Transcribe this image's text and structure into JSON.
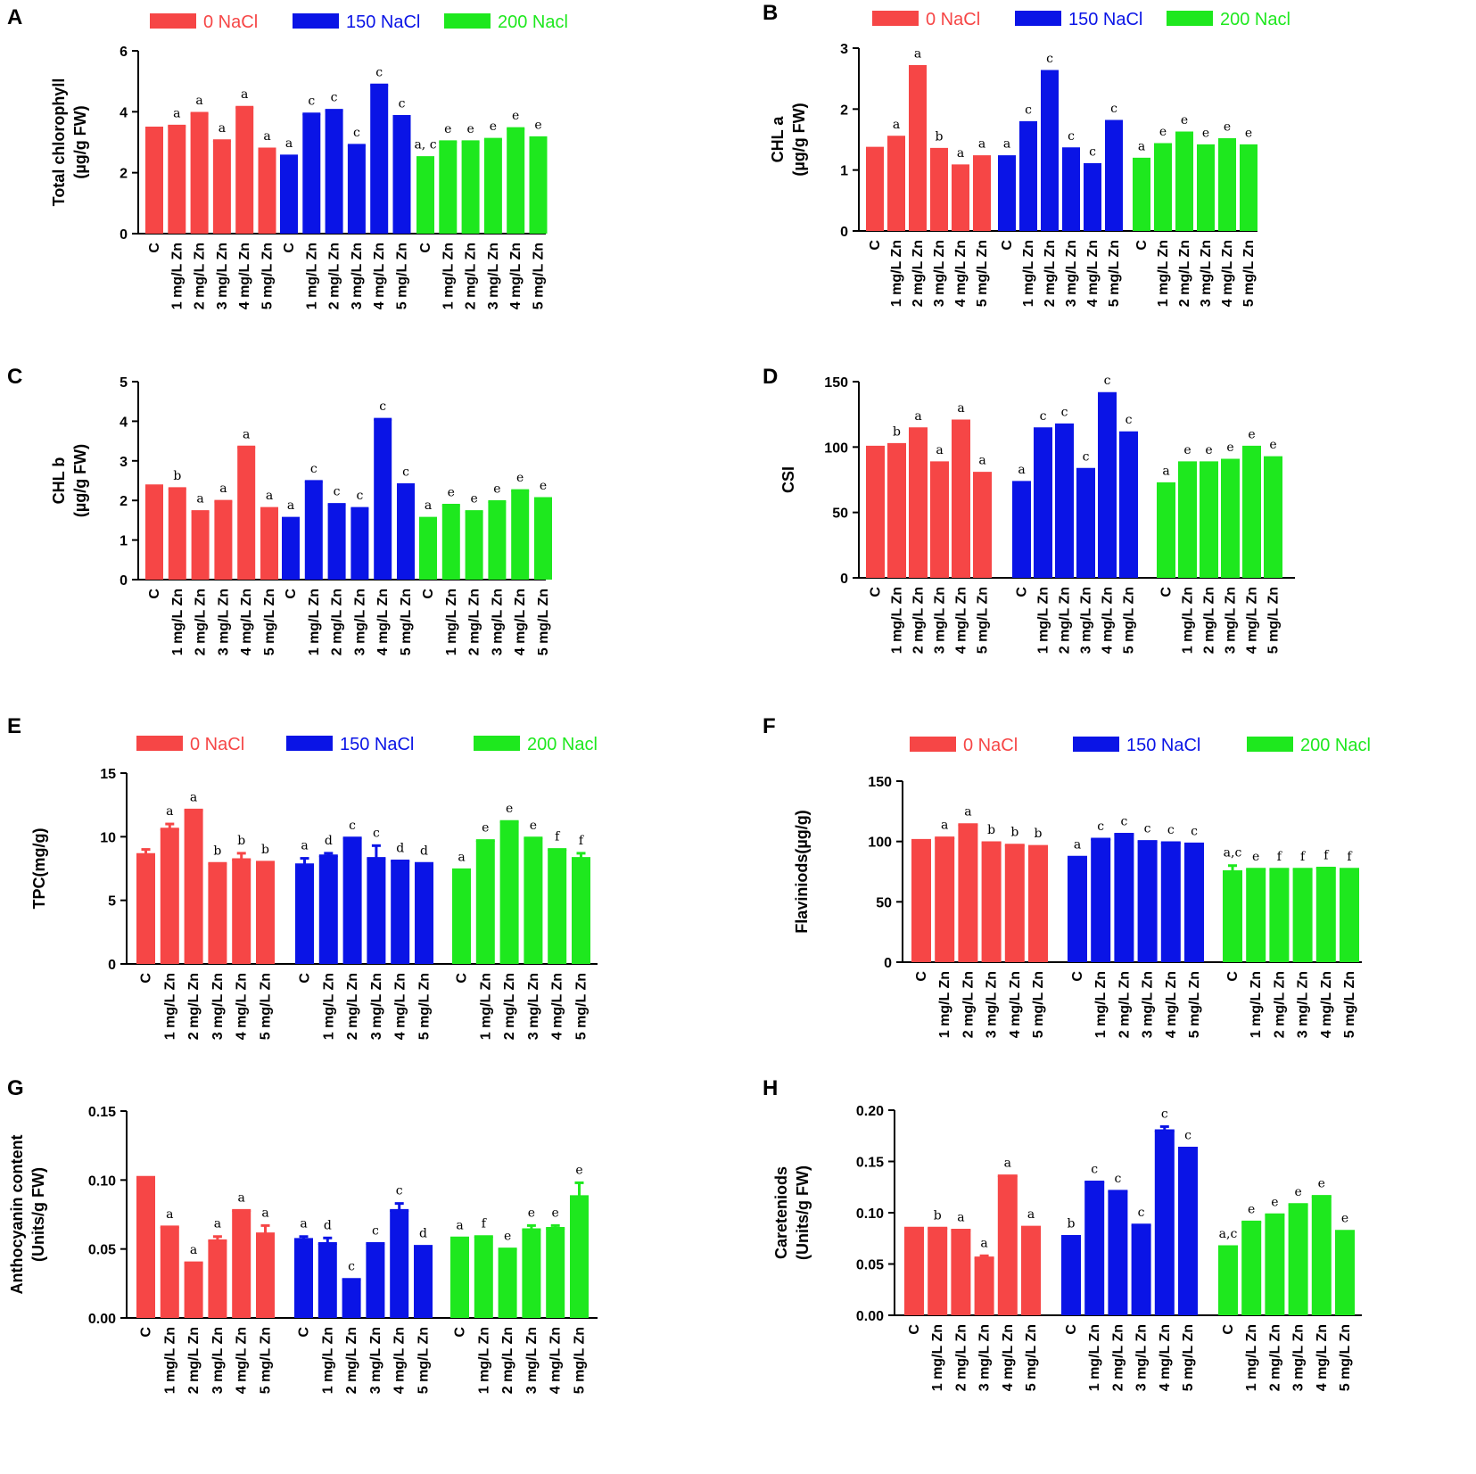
{
  "figure": {
    "series_names": [
      "0 NaCl",
      "150 NaCl",
      "200 Nacl"
    ],
    "colors": {
      "0 NaCl": "#f64646",
      "150 NaCl": "#0a14e6",
      "200 Nacl": "#1ee81e",
      "axis": "#000000",
      "background": "#ffffff"
    }
  },
  "chart_data": [
    {
      "panel": "A",
      "type": "bar",
      "ylabel": "Total chlorophyll\n(µg/g FW)",
      "ylim": [
        0,
        6
      ],
      "yticks": [
        "0",
        "2",
        "4",
        "6"
      ],
      "legend": true,
      "categories": [
        "C",
        "1 mg/L Zn",
        "2 mg/L Zn",
        "3 mg/L Zn",
        "4 mg/L Zn",
        "5 mg/L Zn"
      ],
      "series": [
        {
          "name": "0 NaCl",
          "values": [
            3.47,
            3.53,
            3.95,
            3.05,
            4.15,
            2.78
          ],
          "errors": [
            0,
            0,
            0,
            0,
            0,
            0
          ],
          "labels": [
            "",
            "a",
            "a",
            "a",
            "a",
            "a"
          ]
        },
        {
          "name": "150 NaCl",
          "values": [
            2.55,
            3.93,
            4.05,
            2.9,
            4.88,
            3.85
          ],
          "errors": [
            0,
            0,
            0,
            0,
            0,
            0
          ],
          "labels": [
            "a",
            "c",
            "c",
            "c",
            "c",
            "c"
          ]
        },
        {
          "name": "200 Nacl",
          "values": [
            2.5,
            3.02,
            3.02,
            3.1,
            3.45,
            3.15
          ],
          "errors": [
            0,
            0,
            0,
            0,
            0,
            0
          ],
          "labels": [
            "a, c",
            "e",
            "e",
            "e",
            "e",
            "e"
          ]
        }
      ]
    },
    {
      "panel": "B",
      "type": "bar",
      "ylabel": "CHL a\n(µg/g FW)",
      "ylim": [
        0,
        3
      ],
      "yticks": [
        "0",
        "1",
        "2",
        "3"
      ],
      "legend": true,
      "categories": [
        "C",
        "1 mg/L Zn",
        "2 mg/L Zn",
        "3 mg/L Zn",
        "4 mg/L Zn",
        "5 mg/L Zn"
      ],
      "series": [
        {
          "name": "0 NaCl",
          "values": [
            1.36,
            1.54,
            2.7,
            1.34,
            1.07,
            1.22
          ],
          "errors": [
            0,
            0,
            0,
            0,
            0,
            0
          ],
          "labels": [
            "",
            "a",
            "a",
            "b",
            "a",
            "a"
          ]
        },
        {
          "name": "150 NaCl",
          "values": [
            1.22,
            1.78,
            2.62,
            1.35,
            1.09,
            1.8
          ],
          "errors": [
            0,
            0,
            0,
            0,
            0,
            0
          ],
          "labels": [
            "a",
            "c",
            "c",
            "c",
            "c",
            "c"
          ]
        },
        {
          "name": "200 Nacl",
          "values": [
            1.18,
            1.42,
            1.61,
            1.4,
            1.5,
            1.4
          ],
          "errors": [
            0,
            0,
            0,
            0,
            0,
            0
          ],
          "labels": [
            "a",
            "e",
            "e",
            "e",
            "e",
            "e"
          ]
        }
      ]
    },
    {
      "panel": "C",
      "type": "bar",
      "ylabel": "CHL b\n(µg/g FW)",
      "ylim": [
        0,
        5
      ],
      "yticks": [
        "0",
        "1",
        "2",
        "3",
        "4",
        "5"
      ],
      "legend": false,
      "categories": [
        "C",
        "1 mg/L Zn",
        "2 mg/L Zn",
        "3 mg/L Zn",
        "4 mg/L Zn",
        "5 mg/L Zn"
      ],
      "series": [
        {
          "name": "0 NaCl",
          "values": [
            2.37,
            2.3,
            1.72,
            1.98,
            3.35,
            1.8
          ],
          "errors": [
            0,
            0,
            0,
            0,
            0,
            0
          ],
          "labels": [
            "",
            "b",
            "a",
            "a",
            "a",
            "a"
          ]
        },
        {
          "name": "150 NaCl",
          "values": [
            1.55,
            2.48,
            1.9,
            1.8,
            4.05,
            2.4
          ],
          "errors": [
            0,
            0,
            0,
            0,
            0,
            0
          ],
          "labels": [
            "a",
            "c",
            "c",
            "c",
            "c",
            "c"
          ]
        },
        {
          "name": "200 Nacl",
          "values": [
            1.55,
            1.88,
            1.72,
            1.97,
            2.25,
            2.05
          ],
          "errors": [
            0,
            0,
            0,
            0,
            0,
            0
          ],
          "labels": [
            "a",
            "e",
            "e",
            "e",
            "e",
            "e"
          ]
        }
      ]
    },
    {
      "panel": "D",
      "type": "bar",
      "ylabel": "CSI",
      "ylim": [
        0,
        150
      ],
      "yticks": [
        "0",
        "50",
        "100",
        "150"
      ],
      "legend": false,
      "categories": [
        "C",
        "1 mg/L Zn",
        "2 mg/L Zn",
        "3 mg/L Zn",
        "4 mg/L Zn",
        "5 mg/L Zn"
      ],
      "series": [
        {
          "name": "0 NaCl",
          "values": [
            100,
            102,
            114,
            88,
            120,
            80
          ],
          "errors": [
            0,
            0,
            0,
            0,
            0,
            0
          ],
          "labels": [
            "",
            "b",
            "a",
            "a",
            "a",
            "a"
          ]
        },
        {
          "name": "150 NaCl",
          "values": [
            73,
            114,
            117,
            83,
            141,
            111
          ],
          "errors": [
            0,
            0,
            0,
            0,
            0,
            0
          ],
          "labels": [
            "a",
            "c",
            "c",
            "c",
            "c",
            "c"
          ]
        },
        {
          "name": "200 Nacl",
          "values": [
            72,
            88,
            88,
            90,
            100,
            92
          ],
          "errors": [
            0,
            0,
            0,
            0,
            0,
            0
          ],
          "labels": [
            "a",
            "e",
            "e",
            "e",
            "e",
            "e"
          ]
        }
      ]
    },
    {
      "panel": "E",
      "type": "bar",
      "ylabel": "TPC(mg/g)",
      "ylim": [
        0,
        15
      ],
      "yticks": [
        "0",
        "5",
        "10",
        "15"
      ],
      "legend": true,
      "categories": [
        "C",
        "1 mg/L Zn",
        "2 mg/L Zn",
        "3 mg/L Zn",
        "4 mg/L Zn",
        "5 mg/L Zn"
      ],
      "series": [
        {
          "name": "0 NaCl",
          "values": [
            8.6,
            10.6,
            12.1,
            7.9,
            8.2,
            8.0
          ],
          "errors": [
            0.4,
            0.4,
            0,
            0,
            0.5,
            0
          ],
          "labels": [
            "",
            "a",
            "a",
            "b",
            "b",
            "b"
          ]
        },
        {
          "name": "150 NaCl",
          "values": [
            7.8,
            8.5,
            9.9,
            8.3,
            8.1,
            7.9
          ],
          "errors": [
            0.5,
            0.2,
            0,
            1.0,
            0,
            0
          ],
          "labels": [
            "a",
            "d",
            "c",
            "c",
            "d",
            "d"
          ]
        },
        {
          "name": "200 Nacl",
          "values": [
            7.4,
            9.7,
            11.2,
            9.9,
            9.0,
            8.3
          ],
          "errors": [
            0,
            0,
            0,
            0,
            0,
            0.4
          ],
          "labels": [
            "a",
            "e",
            "e",
            "e",
            "f",
            "f"
          ]
        }
      ]
    },
    {
      "panel": "F",
      "type": "bar",
      "ylabel": "Flaviniods(µg/g)",
      "ylim": [
        0,
        150
      ],
      "yticks": [
        "0",
        "50",
        "100",
        "150"
      ],
      "legend": true,
      "categories": [
        "C",
        "1 mg/L Zn",
        "2 mg/L Zn",
        "3 mg/L Zn",
        "4 mg/L Zn",
        "5 mg/L Zn"
      ],
      "series": [
        {
          "name": "0 NaCl",
          "values": [
            101,
            103,
            114,
            99,
            97,
            96
          ],
          "errors": [
            0,
            0,
            0,
            0,
            0,
            0
          ],
          "labels": [
            "",
            "a",
            "a",
            "b",
            "b",
            "b"
          ]
        },
        {
          "name": "150 NaCl",
          "values": [
            87,
            102,
            106,
            100,
            99,
            98
          ],
          "errors": [
            0,
            0,
            0,
            0,
            0,
            0
          ],
          "labels": [
            "a",
            "c",
            "c",
            "c",
            "c",
            "c"
          ]
        },
        {
          "name": "200 Nacl",
          "values": [
            75,
            77,
            77,
            77,
            78,
            77
          ],
          "errors": [
            5,
            0,
            0,
            0,
            0,
            0
          ],
          "labels": [
            "a,c",
            "e",
            "f",
            "f",
            "f",
            "f"
          ]
        }
      ]
    },
    {
      "panel": "G",
      "type": "bar",
      "ylabel": "Anthocyanin content\n(Units/g FW)",
      "ylim": [
        0,
        0.15
      ],
      "yticks": [
        "0.00",
        "0.05",
        "0.10",
        "0.15"
      ],
      "legend": false,
      "categories": [
        "C",
        "1 mg/L Zn",
        "2 mg/L Zn",
        "3 mg/L Zn",
        "4 mg/L Zn",
        "5 mg/L Zn"
      ],
      "series": [
        {
          "name": "0 NaCl",
          "values": [
            0.102,
            0.066,
            0.04,
            0.056,
            0.078,
            0.061
          ],
          "errors": [
            0,
            0,
            0,
            0.003,
            0,
            0.006
          ],
          "labels": [
            "",
            "a",
            "a",
            "a",
            "a",
            "a"
          ]
        },
        {
          "name": "150 NaCl",
          "values": [
            0.057,
            0.054,
            0.028,
            0.054,
            0.078,
            0.052
          ],
          "errors": [
            0.002,
            0.004,
            0,
            0,
            0.005,
            0
          ],
          "labels": [
            "a",
            "d",
            "c",
            "c",
            "c",
            "d"
          ]
        },
        {
          "name": "200 Nacl",
          "values": [
            0.058,
            0.059,
            0.05,
            0.064,
            0.065,
            0.088
          ],
          "errors": [
            0,
            0,
            0,
            0.003,
            0.002,
            0.01
          ],
          "labels": [
            "a",
            "f",
            "e",
            "e",
            "e",
            "e"
          ]
        }
      ]
    },
    {
      "panel": "H",
      "type": "bar",
      "ylabel": "Careteniods\n(Units/g FW)",
      "ylim": [
        0,
        0.2
      ],
      "yticks": [
        "0.00",
        "0.05",
        "0.10",
        "0.15",
        "0.20"
      ],
      "legend": false,
      "categories": [
        "C",
        "1 mg/L Zn",
        "2 mg/L Zn",
        "3 mg/L Zn",
        "4 mg/L Zn",
        "5 mg/L Zn"
      ],
      "series": [
        {
          "name": "0 NaCl",
          "values": [
            0.085,
            0.085,
            0.083,
            0.056,
            0.136,
            0.086
          ],
          "errors": [
            0,
            0,
            0,
            0.002,
            0,
            0
          ],
          "labels": [
            "",
            "b",
            "a",
            "a",
            "a",
            "a"
          ]
        },
        {
          "name": "150 NaCl",
          "values": [
            0.077,
            0.13,
            0.121,
            0.088,
            0.18,
            0.163
          ],
          "errors": [
            0,
            0,
            0,
            0,
            0.004,
            0
          ],
          "labels": [
            "b",
            "c",
            "c",
            "c",
            "c",
            "c"
          ]
        },
        {
          "name": "200 Nacl",
          "values": [
            0.067,
            0.091,
            0.098,
            0.108,
            0.116,
            0.082
          ],
          "errors": [
            0,
            0,
            0,
            0,
            0,
            0
          ],
          "labels": [
            "a,c",
            "e",
            "e",
            "e",
            "e",
            "e"
          ]
        }
      ]
    }
  ]
}
